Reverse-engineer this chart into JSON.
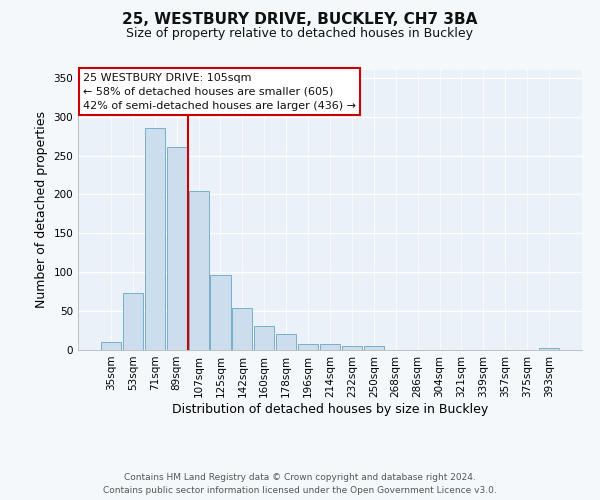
{
  "title": "25, WESTBURY DRIVE, BUCKLEY, CH7 3BA",
  "subtitle": "Size of property relative to detached houses in Buckley",
  "xlabel": "Distribution of detached houses by size in Buckley",
  "ylabel": "Number of detached properties",
  "bin_labels": [
    "35sqm",
    "53sqm",
    "71sqm",
    "89sqm",
    "107sqm",
    "125sqm",
    "142sqm",
    "160sqm",
    "178sqm",
    "196sqm",
    "214sqm",
    "232sqm",
    "250sqm",
    "268sqm",
    "286sqm",
    "304sqm",
    "321sqm",
    "339sqm",
    "357sqm",
    "375sqm",
    "393sqm"
  ],
  "bar_heights": [
    10,
    73,
    286,
    261,
    204,
    96,
    54,
    31,
    21,
    8,
    8,
    5,
    5,
    0,
    0,
    0,
    0,
    0,
    0,
    0,
    2
  ],
  "bar_color": "#ccdded",
  "bar_edge_color": "#7aafc8",
  "vline_color": "#cc0000",
  "ylim": [
    0,
    360
  ],
  "yticks": [
    0,
    50,
    100,
    150,
    200,
    250,
    300,
    350
  ],
  "annotation_title": "25 WESTBURY DRIVE: 105sqm",
  "annotation_line1": "← 58% of detached houses are smaller (605)",
  "annotation_line2": "42% of semi-detached houses are larger (436) →",
  "annotation_box_color": "#ffffff",
  "annotation_box_edge": "#cc0000",
  "footer1": "Contains HM Land Registry data © Crown copyright and database right 2024.",
  "footer2": "Contains public sector information licensed under the Open Government Licence v3.0.",
  "fig_bg_color": "#f4f8fb",
  "plot_bg_color": "#eaf1f8",
  "grid_color": "#ffffff",
  "title_fontsize": 11,
  "subtitle_fontsize": 9,
  "axis_label_fontsize": 9,
  "tick_fontsize": 7.5,
  "annotation_fontsize": 8,
  "footer_fontsize": 6.5,
  "vline_xindex": 3.5
}
